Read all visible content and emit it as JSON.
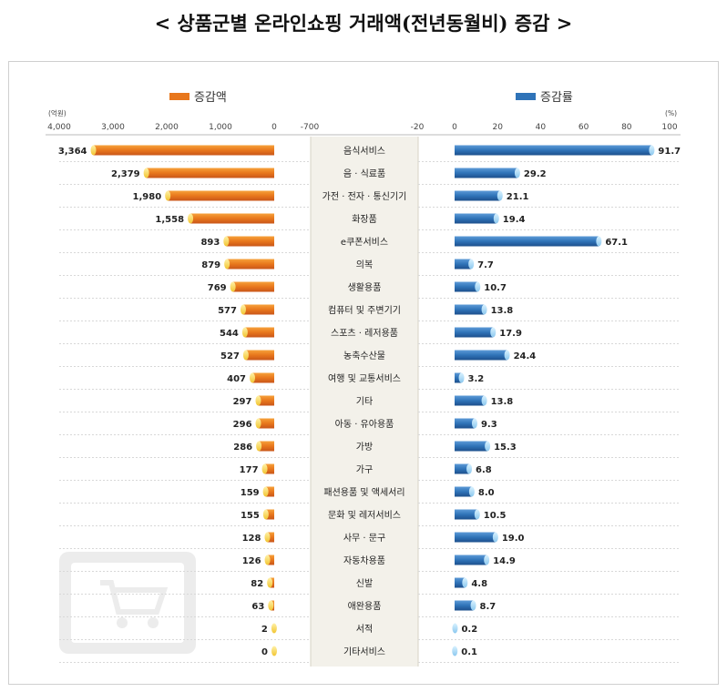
{
  "title": "< 상품군별 온라인쇼핑 거래액(전년동월비) 증감 >",
  "chart_data": [
    {
      "type": "bar",
      "orientation": "horizontal",
      "legend": "증감액",
      "unit": "(억원)",
      "xlim": [
        4000,
        0
      ],
      "axis_ticks": [
        "4,000",
        "3,000",
        "2,000",
        "1,000",
        "0"
      ],
      "color": "#e8771c",
      "categories": [
        "음식서비스",
        "음 · 식료품",
        "가전 · 전자 · 통신기기",
        "화장품",
        "e쿠폰서비스",
        "의복",
        "생활용품",
        "컴퓨터 및 주변기기",
        "스포츠 · 레저용품",
        "농축수산물",
        "여행 및 교통서비스",
        "기타",
        "아동 · 유아용품",
        "가방",
        "가구",
        "패션용품 및 액세서리",
        "문화 및 레저서비스",
        "사무 · 문구",
        "자동차용품",
        "신발",
        "애완용품",
        "서적",
        "기타서비스"
      ],
      "values": [
        3364,
        2379,
        1980,
        1558,
        893,
        879,
        769,
        577,
        544,
        527,
        407,
        297,
        296,
        286,
        177,
        159,
        155,
        128,
        126,
        82,
        63,
        2,
        0
      ],
      "value_labels": [
        "3,364",
        "2,379",
        "1,980",
        "1,558",
        "893",
        "879",
        "769",
        "577",
        "544",
        "527",
        "407",
        "297",
        "296",
        "286",
        "177",
        "159",
        "155",
        "128",
        "126",
        "82",
        "63",
        "2",
        "0"
      ]
    },
    {
      "type": "bar",
      "orientation": "horizontal",
      "legend": "증감률",
      "unit": "(%)",
      "xlim": [
        0,
        100
      ],
      "axis_ticks": [
        "0",
        "20",
        "40",
        "60",
        "80",
        "100"
      ],
      "color": "#2f73b8",
      "categories": [
        "음식서비스",
        "음 · 식료품",
        "가전 · 전자 · 통신기기",
        "화장품",
        "e쿠폰서비스",
        "의복",
        "생활용품",
        "컴퓨터 및 주변기기",
        "스포츠 · 레저용품",
        "농축수산물",
        "여행 및 교통서비스",
        "기타",
        "아동 · 유아용품",
        "가방",
        "가구",
        "패션용품 및 액세서리",
        "문화 및 레저서비스",
        "사무 · 문구",
        "자동차용품",
        "신발",
        "애완용품",
        "서적",
        "기타서비스"
      ],
      "values": [
        91.7,
        29.2,
        21.1,
        19.4,
        67.1,
        7.7,
        10.7,
        13.8,
        17.9,
        24.4,
        3.2,
        13.8,
        9.3,
        15.3,
        6.8,
        8.0,
        10.5,
        19.0,
        14.9,
        4.8,
        8.7,
        0.2,
        0.1
      ],
      "value_labels": [
        "91.7",
        "29.2",
        "21.1",
        "19.4",
        "67.1",
        "7.7",
        "10.7",
        "13.8",
        "17.9",
        "24.4",
        "3.2",
        "13.8",
        "9.3",
        "15.3",
        "6.8",
        "8.0",
        "10.5",
        "19.0",
        "14.9",
        "4.8",
        "8.7",
        "0.2",
        "0.1"
      ]
    }
  ],
  "middle_axis": {
    "ticks": [
      "-700",
      "-20"
    ]
  },
  "colors": {
    "amount": "#e8771c",
    "rate": "#2f73b8",
    "category_band": "#f3f1ea"
  },
  "icons": {
    "watermark": "shopping-cart-monitor-icon"
  }
}
